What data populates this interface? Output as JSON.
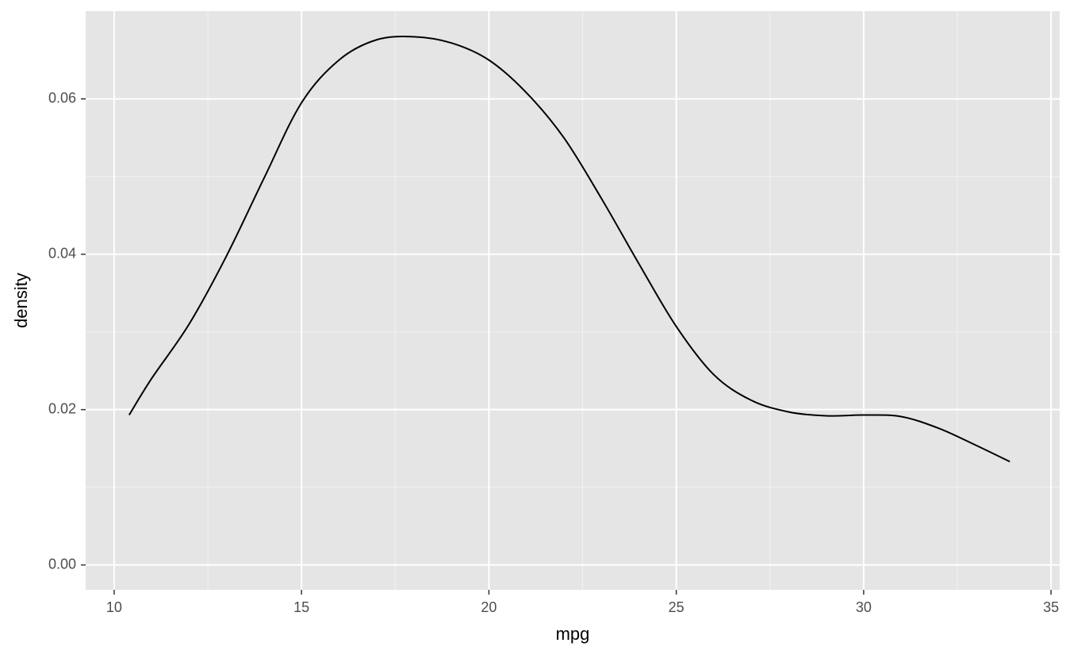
{
  "chart_data": {
    "type": "line",
    "x_label": "mpg",
    "y_label": "density",
    "x": [
      10.4,
      11,
      12,
      13,
      14,
      15,
      16,
      17,
      18,
      19,
      20,
      21,
      22,
      23,
      24,
      25,
      26,
      27,
      28,
      29,
      30,
      31,
      32,
      33,
      33.9
    ],
    "series": [
      {
        "color": "#000000",
        "values": [
          0.0193,
          0.024,
          0.031,
          0.0398,
          0.0498,
          0.0595,
          0.065,
          0.0676,
          0.068,
          0.0672,
          0.065,
          0.0608,
          0.055,
          0.0472,
          0.0388,
          0.0307,
          0.0245,
          0.0212,
          0.0197,
          0.0192,
          0.0193,
          0.0191,
          0.0176,
          0.0154,
          0.0133
        ]
      }
    ],
    "xlim": [
      9.24,
      35.23
    ],
    "xticks": [
      10,
      15,
      20,
      25,
      30,
      35
    ],
    "x_minor_breaks": [
      12.5,
      17.5,
      22.5,
      27.5,
      32.5
    ],
    "ylim": [
      -0.0032,
      0.0713
    ],
    "yticks": [
      {
        "value": 0,
        "label": "0.00"
      },
      {
        "value": 0.02,
        "label": "0.02"
      },
      {
        "value": 0.04,
        "label": "0.04"
      },
      {
        "value": 0.06,
        "label": "0.06"
      }
    ],
    "y_minor_breaks": [
      0.01,
      0.03,
      0.05
    ],
    "grid": true
  }
}
